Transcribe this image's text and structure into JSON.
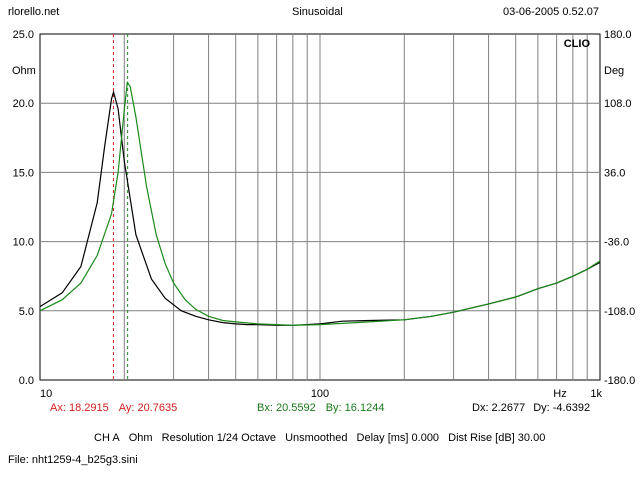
{
  "header": {
    "left": "rlorello.net",
    "center": "Sinusoidal",
    "right": "03-06-2005 0.52.07"
  },
  "chart_data": {
    "type": "line",
    "brand": "CLIO",
    "x_scale": "log",
    "xlim": [
      10,
      1000
    ],
    "x_ticks": [
      {
        "value": 10,
        "label": "10"
      },
      {
        "value": 100,
        "label": "100"
      },
      {
        "value": 1000,
        "label": "1k"
      }
    ],
    "x_unit": "Hz",
    "y_left": {
      "unit": "Ohm",
      "lim": [
        0,
        25
      ],
      "ticks": [
        "25.0",
        "20.0",
        "15.0",
        "10.0",
        "5.0",
        "0.0"
      ]
    },
    "y_right": {
      "unit": "Deg",
      "lim": [
        -180,
        180
      ],
      "ticks": [
        "180.0",
        "108.0",
        "36.0",
        "-36.0",
        "-108.0",
        "-180.0"
      ]
    },
    "grid": true,
    "series": [
      {
        "color": "#000000",
        "x": [
          10,
          12,
          14,
          16,
          17,
          18,
          18.3,
          19,
          20,
          22,
          25,
          28,
          32,
          36,
          40,
          45,
          50,
          55,
          60,
          70,
          80,
          100,
          120,
          150,
          200,
          250,
          300,
          400,
          500,
          600,
          700,
          800,
          900,
          1000
        ],
        "y": [
          5.3,
          6.3,
          8.2,
          12.8,
          16.8,
          20.3,
          20.8,
          19.6,
          15.8,
          10.5,
          7.3,
          5.9,
          5.0,
          4.6,
          4.35,
          4.15,
          4.05,
          4.0,
          4.0,
          3.95,
          3.95,
          4.05,
          4.25,
          4.3,
          4.35,
          4.6,
          4.9,
          5.5,
          6.0,
          6.6,
          7.0,
          7.5,
          8.0,
          8.5
        ]
      },
      {
        "color": "#1a8a1a",
        "x": [
          10,
          12,
          14,
          16,
          18,
          19,
          20,
          20.5,
          21,
          22,
          24,
          26,
          28,
          30,
          33,
          36,
          40,
          45,
          50,
          60,
          70,
          80,
          100,
          150,
          200,
          250,
          300,
          400,
          500,
          600,
          700,
          800,
          900,
          1000
        ],
        "y": [
          5.0,
          5.8,
          7.0,
          9.0,
          12.0,
          15.0,
          19.5,
          21.5,
          21.2,
          19.0,
          14.0,
          10.5,
          8.4,
          7.0,
          5.8,
          5.1,
          4.6,
          4.3,
          4.2,
          4.05,
          4.0,
          3.95,
          4.0,
          4.2,
          4.35,
          4.6,
          4.9,
          5.5,
          6.0,
          6.6,
          7.0,
          7.5,
          8.0,
          8.6
        ]
      }
    ],
    "markers": [
      {
        "x": 18.2915,
        "color": "#d21e1e"
      },
      {
        "x": 20.5592,
        "color": "#1a8a1a"
      }
    ]
  },
  "readout": {
    "a_x": "Ax: 18.2915",
    "a_y": "Ay: 20.7635",
    "b_x": "Bx: 20.5592",
    "b_y": "By: 16.1244",
    "dx": "Dx: 2.2677",
    "dy": "Dy: -4.6392",
    "color_a": "#d21e1e",
    "color_b": "#1a7a1a"
  },
  "settings": {
    "channel": "CH A",
    "unit": "Ohm",
    "resolution": "Resolution 1/24 Octave",
    "smoothing": "Unsmoothed",
    "delay": "Delay [ms] 0.000",
    "dist_rise": "Dist Rise [dB] 30.00"
  },
  "file": "File: nht1259-4_b25g3.sini"
}
